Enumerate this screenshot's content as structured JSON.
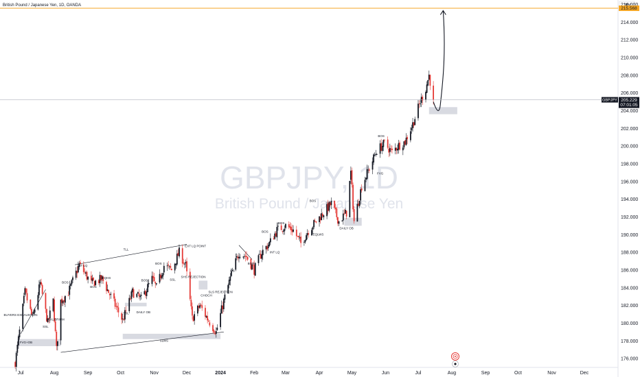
{
  "header": {
    "symbol_title": "British Pound / Japanese Yen, 1D, OANDA",
    "currency": "JPY"
  },
  "watermark": {
    "ticker": "GBPJPY, 1D",
    "description": "British Pound / Japanese Yen"
  },
  "colors": {
    "up": "#131722",
    "down": "#e53935",
    "target_line": "#f5a623",
    "target_label_bg": "#f5a623",
    "price_label_bg": "#131722",
    "zone": "#d1d4dc",
    "watermark": "#e0e3eb",
    "trendline": "#131722"
  },
  "price_labels": {
    "target": "215.568",
    "current": "205.229",
    "countdown": "07:01:05",
    "symbol_tag": "GBPJPY"
  },
  "chart_data": {
    "type": "candlestick",
    "title": "British Pound / Japanese Yen, 1D, OANDA",
    "ylim": [
      175,
      216.5
    ],
    "y_ticks": [
      "176.000",
      "178.000",
      "180.000",
      "182.000",
      "184.000",
      "186.000",
      "188.000",
      "190.000",
      "192.000",
      "194.000",
      "196.000",
      "198.000",
      "200.000",
      "202.000",
      "204.000",
      "206.000",
      "208.000",
      "210.000",
      "212.000",
      "214.000",
      "216.000"
    ],
    "x_ticks": [
      "Jul",
      "Aug",
      "Sep",
      "Oct",
      "Nov",
      "Dec",
      "2024",
      "Feb",
      "Mar",
      "Apr",
      "May",
      "Jun",
      "Jul",
      "Aug",
      "Sep",
      "Oct",
      "Nov",
      "Dec"
    ],
    "grid": false,
    "target_level": 215.568,
    "current_price": 205.229,
    "price_path": [
      [
        "2023-06-26",
        175.5
      ],
      [
        "2023-07-05",
        183.5
      ],
      [
        "2023-07-12",
        180.5
      ],
      [
        "2023-07-19",
        184.5
      ],
      [
        "2023-07-26",
        180.0
      ],
      [
        "2023-07-31",
        182.5
      ],
      [
        "2023-08-03",
        177.0
      ],
      [
        "2023-08-07",
        182.5
      ],
      [
        "2023-08-14",
        183.5
      ],
      [
        "2023-08-24",
        186.6
      ],
      [
        "2023-09-04",
        184.5
      ],
      [
        "2023-09-14",
        185.0
      ],
      [
        "2023-09-22",
        183.0
      ],
      [
        "2023-10-03",
        180.3
      ],
      [
        "2023-10-12",
        183.5
      ],
      [
        "2023-10-20",
        182.7
      ],
      [
        "2023-10-30",
        185.0
      ],
      [
        "2023-11-03",
        184.0
      ],
      [
        "2023-11-10",
        186.5
      ],
      [
        "2023-11-17",
        186.0
      ],
      [
        "2023-11-24",
        188.0
      ],
      [
        "2023-11-30",
        186.5
      ],
      [
        "2023-12-06",
        180.5
      ],
      [
        "2023-12-13",
        182.0
      ],
      [
        "2023-12-20",
        180.5
      ],
      [
        "2023-12-28",
        179.0
      ],
      [
        "2024-01-04",
        182.5
      ],
      [
        "2024-01-11",
        185.5
      ],
      [
        "2024-01-18",
        188.0
      ],
      [
        "2024-01-25",
        187.5
      ],
      [
        "2024-02-01",
        186.0
      ],
      [
        "2024-02-08",
        188.0
      ],
      [
        "2024-02-15",
        189.0
      ],
      [
        "2024-02-22",
        190.5
      ],
      [
        "2024-03-01",
        191.0
      ],
      [
        "2024-03-08",
        190.5
      ],
      [
        "2024-03-15",
        189.0
      ],
      [
        "2024-03-22",
        190.5
      ],
      [
        "2024-03-29",
        191.5
      ],
      [
        "2024-04-05",
        192.5
      ],
      [
        "2024-04-12",
        193.5
      ],
      [
        "2024-04-19",
        191.5
      ],
      [
        "2024-04-26",
        192.5
      ],
      [
        "2024-04-30",
        197.0
      ],
      [
        "2024-05-03",
        191.5
      ],
      [
        "2024-05-10",
        195.5
      ],
      [
        "2024-05-17",
        197.5
      ],
      [
        "2024-05-24",
        199.5
      ],
      [
        "2024-05-31",
        200.3
      ],
      [
        "2024-06-07",
        199.3
      ],
      [
        "2024-06-12",
        200.0
      ],
      [
        "2024-06-19",
        200.5
      ],
      [
        "2024-06-26",
        202.5
      ],
      [
        "2024-07-03",
        205.0
      ],
      [
        "2024-07-08",
        206.5
      ],
      [
        "2024-07-11",
        208.0
      ],
      [
        "2024-07-15",
        205.229
      ]
    ],
    "projection": [
      [
        "2024-07-15",
        205.0
      ],
      [
        "2024-07-19",
        204.5
      ],
      [
        "2024-07-24",
        215.3
      ]
    ],
    "zones": [
      {
        "label": "FVG+OB",
        "from": "2023-06-28",
        "to": "2023-08-07",
        "low": 177.4,
        "high": 178.2
      },
      {
        "label": "SLWS",
        "from": "2023-10-03",
        "to": "2024-01-01",
        "low": 178.2,
        "high": 178.8
      },
      {
        "label": "DAILY OB",
        "from": "2023-10-05",
        "to": "2023-10-25",
        "low": 181.9,
        "high": 182.3
      },
      {
        "label": "CHOCH",
        "from": "2023-12-12",
        "to": "2023-12-20",
        "low": 183.8,
        "high": 184.8
      },
      {
        "label": "DAILY OB",
        "from": "2024-04-24",
        "to": "2024-05-10",
        "low": 191.0,
        "high": 191.9
      },
      {
        "label": "",
        "from": "2024-07-11",
        "to": "2024-08-06",
        "low": 203.6,
        "high": 204.4
      }
    ],
    "trendlines": [
      {
        "label": "TLL",
        "from": [
          "2023-08-20",
          186.6
        ],
        "to": [
          "2023-12-01",
          188.9
        ]
      },
      {
        "label": "",
        "from": [
          "2023-08-07",
          176.7
        ],
        "to": [
          "2024-01-04",
          179.0
        ]
      },
      {
        "label": "",
        "from": [
          "2023-07-01",
          178.8
        ],
        "to": [
          "2023-07-24",
          183.8
        ]
      },
      {
        "label": "",
        "from": [
          "2024-01-18",
          188.8
        ],
        "to": [
          "2024-01-30",
          187.2
        ]
      }
    ],
    "annotations": [
      {
        "text": "FVG+OB",
        "x": "2023-07-06",
        "y": 177.7
      },
      {
        "text": "BUYERS EXHAUSTION",
        "x": "2023-07-01",
        "y": 180.8
      },
      {
        "text": "SSL",
        "x": "2023-07-24",
        "y": 179.5
      },
      {
        "text": "QUILIBRIUM",
        "x": "2023-08-02",
        "y": 180.3
      },
      {
        "text": "BOS",
        "x": "2023-08-11",
        "y": 184.5
      },
      {
        "text": "INT LQ",
        "x": "2023-08-27",
        "y": 186.4
      },
      {
        "text": "BOS",
        "x": "2023-09-06",
        "y": 184.0
      },
      {
        "text": "EQHS",
        "x": "2023-09-18",
        "y": 185.0
      },
      {
        "text": "SSL",
        "x": "2023-10-06",
        "y": 181.0
      },
      {
        "text": "BOS",
        "x": "2023-10-23",
        "y": 184.7
      },
      {
        "text": "DAILY OB",
        "x": "2023-10-22",
        "y": 181.1
      },
      {
        "text": "BOS",
        "x": "2023-11-05",
        "y": 186.6
      },
      {
        "text": "SSL",
        "x": "2023-11-18",
        "y": 184.8
      },
      {
        "text": "TLL",
        "x": "2023-10-06",
        "y": 188.2
      },
      {
        "text": "SLWS",
        "x": "2023-11-10",
        "y": 177.9
      },
      {
        "text": "EXT LQ POINT",
        "x": "2023-12-09",
        "y": 188.6
      },
      {
        "text": "SHS REJECTION",
        "x": "2023-12-07",
        "y": 185.1
      },
      {
        "text": "CHOCH",
        "x": "2023-12-19",
        "y": 183.0
      },
      {
        "text": "SLS REJECTION",
        "x": "2024-01-01",
        "y": 183.4
      },
      {
        "text": "OB",
        "x": "2024-01-12",
        "y": 185.8
      },
      {
        "text": "BOS",
        "x": "2024-01-29",
        "y": 186.6
      },
      {
        "text": "BOS",
        "x": "2024-02-11",
        "y": 190.2
      },
      {
        "text": "INT LQ",
        "x": "2024-02-20",
        "y": 187.9
      },
      {
        "text": "BOS",
        "x": "2024-02-26",
        "y": 191.2
      },
      {
        "text": "BOS",
        "x": "2024-03-26",
        "y": 193.7
      },
      {
        "text": "EQLWS",
        "x": "2024-03-31",
        "y": 189.9
      },
      {
        "text": "DAILY OB",
        "x": "2024-04-26",
        "y": 190.6
      },
      {
        "text": "BOS",
        "x": "2024-05-28",
        "y": 201.0
      },
      {
        "text": "FVG",
        "x": "2024-05-27",
        "y": 196.8
      }
    ]
  }
}
